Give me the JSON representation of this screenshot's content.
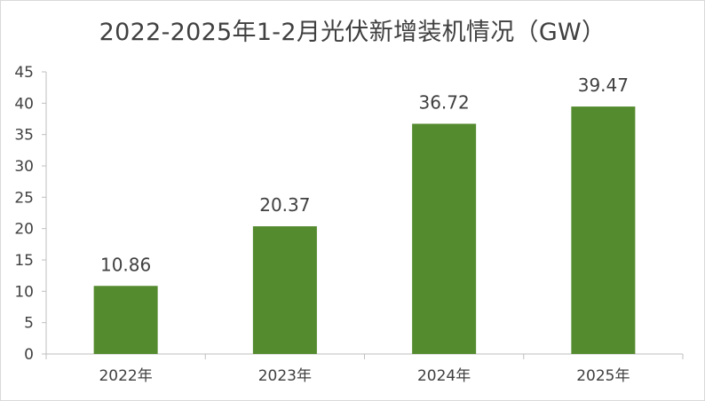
{
  "chart_data": {
    "type": "bar",
    "title": "2022-2025年1-2月光伏新增装机情况（GW）",
    "categories": [
      "2022年",
      "2023年",
      "2024年",
      "2025年"
    ],
    "values": [
      10.86,
      20.37,
      36.72,
      39.47
    ],
    "value_labels": [
      "10.86",
      "20.37",
      "36.72",
      "39.47"
    ],
    "ylim": [
      0,
      45
    ],
    "y_ticks": [
      "0",
      "5",
      "10",
      "15",
      "20",
      "25",
      "30",
      "35",
      "40",
      "45"
    ],
    "xlabel": "",
    "ylabel": "",
    "grid": false,
    "legend": "none",
    "bar_color": "#558b2f"
  }
}
